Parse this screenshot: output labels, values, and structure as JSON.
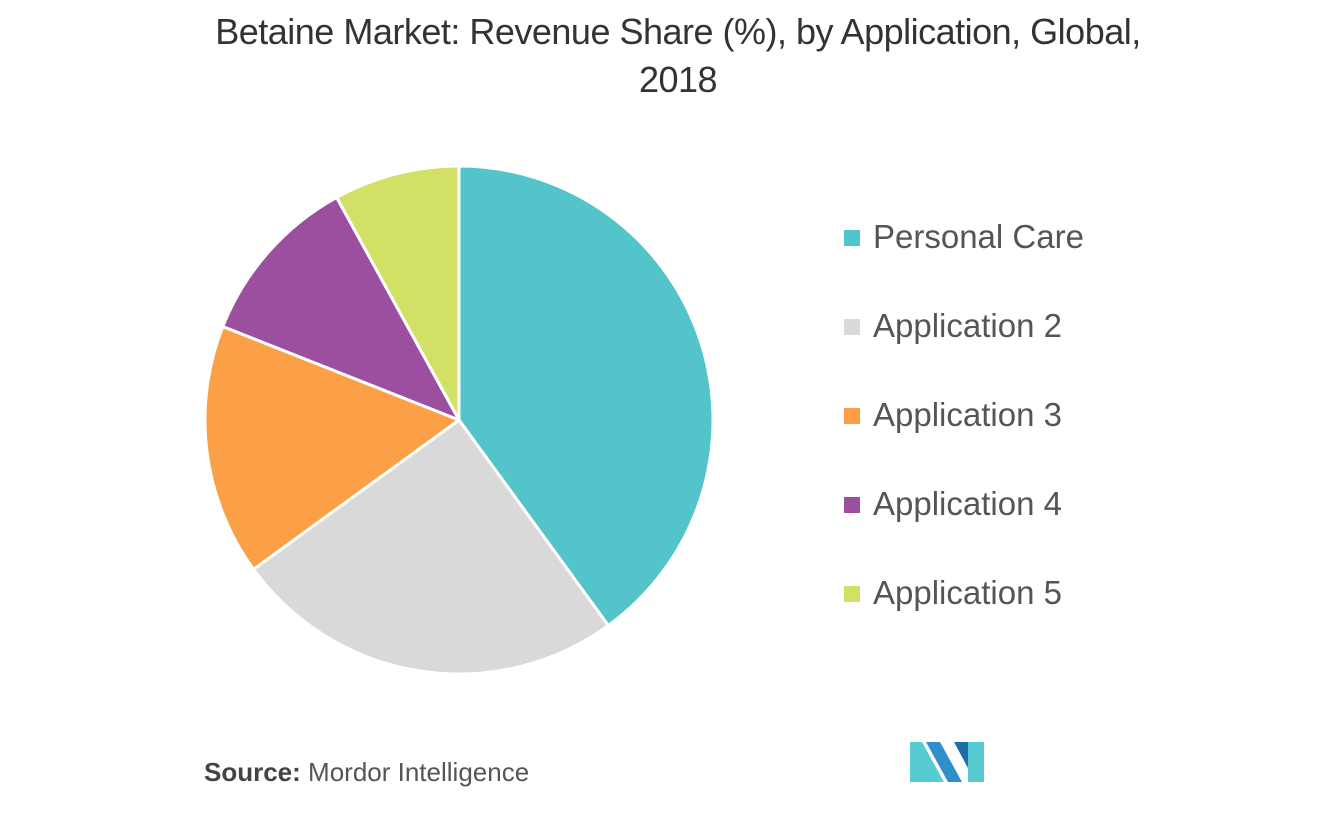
{
  "title_line1": "Betaine Market: Revenue Share (%), by Application, Global,",
  "title_line2": "2018",
  "source_label": "Source:",
  "source_value": "Mordor Intelligence",
  "chart_data": {
    "type": "pie",
    "title": "Betaine Market: Revenue Share (%), by Application, Global, 2018",
    "legend_position": "right",
    "categories": [
      "Personal Care",
      "Application 2",
      "Application 3",
      "Application 4",
      "Application 5"
    ],
    "values": [
      40,
      25,
      16,
      11,
      8
    ],
    "colors": [
      "#52C4CA",
      "#D9D9D9",
      "#FBA046",
      "#9B4F9E",
      "#D3E066"
    ]
  },
  "logo": {
    "icon": "mordor-intelligence-logo-icon",
    "colors": [
      "#2F8FC8",
      "#56CBD2",
      "#1B6EA8"
    ]
  }
}
